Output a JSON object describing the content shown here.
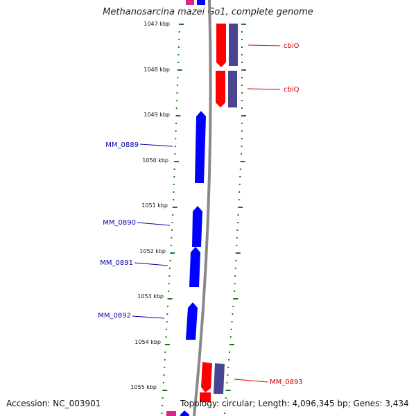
{
  "title": "Methanosarcina mazei Go1, complete genome",
  "footer": {
    "accession": "Accession: NC_003901",
    "topology": "Topology: circular; Length: 4,096,345 bp; Genes: 3,434"
  },
  "colors": {
    "forward_gene": "#0000ff",
    "reverse_gene": "#ff0000",
    "reverse_gene_partner": "#4a4590",
    "top_partial": "#e0238a",
    "tick": "#1a7a1a",
    "backbone": "#888888",
    "forward_label": "#0000aa",
    "reverse_label": "#cc0000"
  },
  "kbp_ticks": [
    "1047 kbp",
    "1048 kbp",
    "1049 kbp",
    "1050 kbp",
    "1051 kbp",
    "1052 kbp",
    "1053 kbp",
    "1054 kbp",
    "1055 kbp"
  ],
  "forward_labels": [
    "MM_0889",
    "MM_0890",
    "MM_0891",
    "MM_0892"
  ],
  "reverse_labels": [
    "cbiO",
    "cbiQ",
    "MM_0893"
  ]
}
